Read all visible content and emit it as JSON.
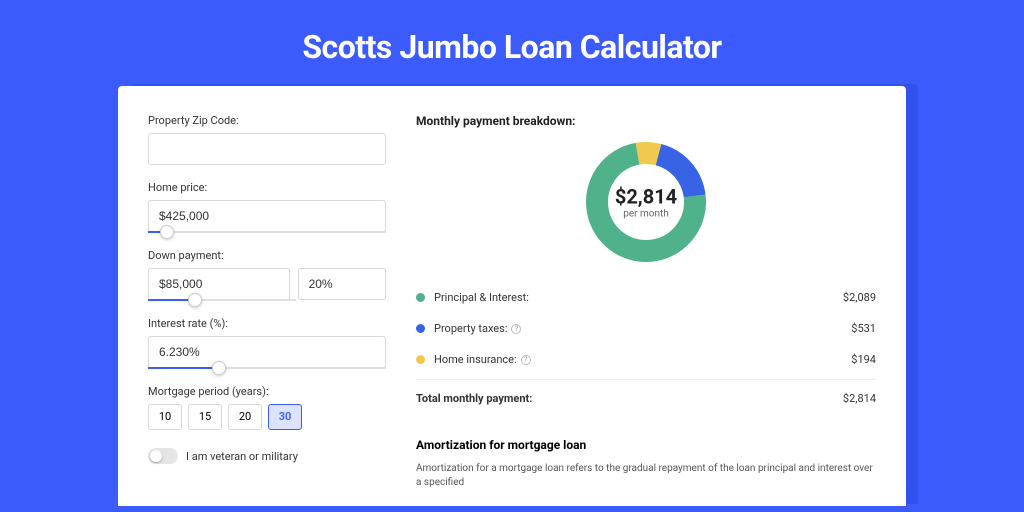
{
  "page_title": "Scotts Jumbo Loan Calculator",
  "colors": {
    "page_bg": "#3b5bfd",
    "accent": "#3b5bfd",
    "card_bg": "#ffffff"
  },
  "form": {
    "zip": {
      "label": "Property Zip Code:",
      "value": ""
    },
    "home_price": {
      "label": "Home price:",
      "value": "$425,000",
      "slider_pct": 8
    },
    "down_payment": {
      "label": "Down payment:",
      "amount": "$85,000",
      "percent": "20%",
      "slider_pct": 20
    },
    "interest_rate": {
      "label": "Interest rate (%):",
      "value": "6.230%",
      "slider_pct": 30
    },
    "mortgage_period": {
      "label": "Mortgage period (years):",
      "options": [
        "10",
        "15",
        "20",
        "30"
      ],
      "selected": "30"
    },
    "veteran": {
      "label": "I am veteran or military",
      "checked": false
    }
  },
  "breakdown": {
    "title": "Monthly payment breakdown:",
    "amount": "$2,814",
    "sub": "per month",
    "donut": {
      "size": 120,
      "stroke": 22,
      "segments": [
        {
          "key": "principal_interest",
          "color": "#4fb28b",
          "pct": 74.2
        },
        {
          "key": "property_taxes",
          "color": "#3863e5",
          "pct": 18.9
        },
        {
          "key": "home_insurance",
          "color": "#f0c94e",
          "pct": 6.9
        }
      ]
    },
    "rows": [
      {
        "label": "Principal & Interest:",
        "value": "$2,089",
        "color": "#4fb28b",
        "info": false
      },
      {
        "label": "Property taxes:",
        "value": "$531",
        "color": "#3863e5",
        "info": true
      },
      {
        "label": "Home insurance:",
        "value": "$194",
        "color": "#f0c94e",
        "info": true
      }
    ],
    "total": {
      "label": "Total monthly payment:",
      "value": "$2,814"
    }
  },
  "amortization": {
    "title": "Amortization for mortgage loan",
    "text": "Amortization for a mortgage loan refers to the gradual repayment of the loan principal and interest over a specified"
  }
}
